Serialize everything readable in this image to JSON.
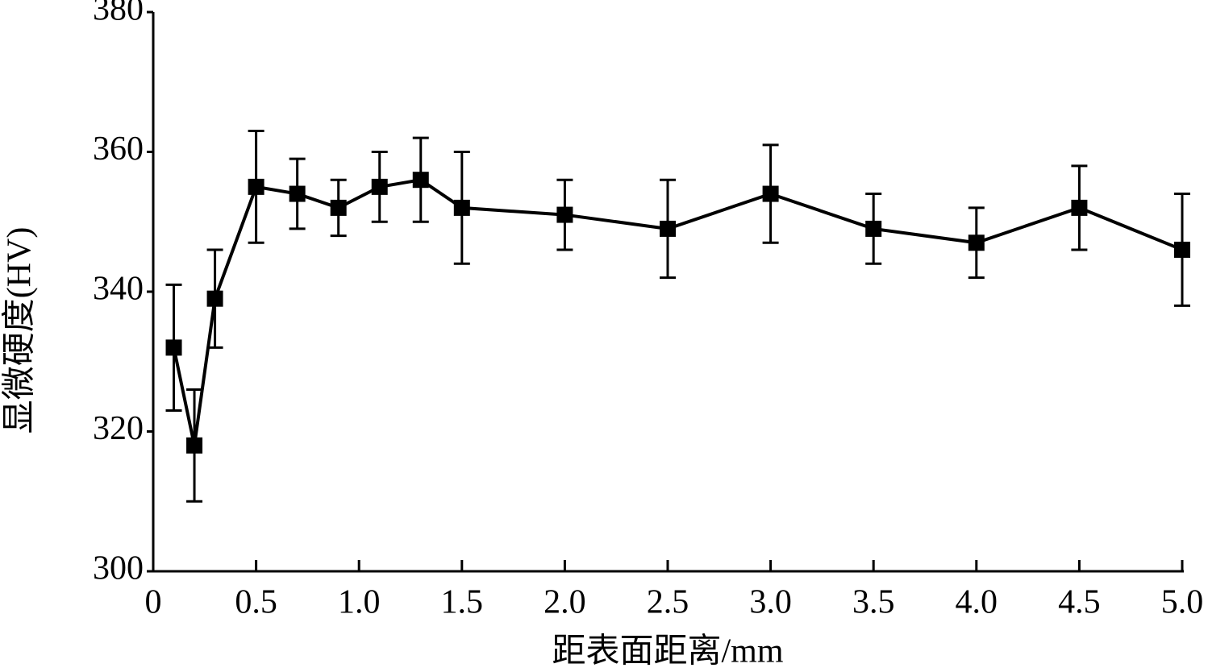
{
  "chart_data": {
    "type": "line",
    "x_label": "距表面距离/mm",
    "y_label": "显微硬度(HV)",
    "x": [
      0.1,
      0.2,
      0.3,
      0.5,
      0.7,
      0.9,
      1.1,
      1.3,
      1.5,
      2.0,
      2.5,
      3.0,
      3.5,
      4.0,
      4.5,
      5.0
    ],
    "values": [
      332,
      318,
      339,
      355,
      354,
      352,
      355,
      356,
      352,
      351,
      349,
      354,
      349,
      347,
      352,
      346
    ],
    "errors": [
      9,
      8,
      7,
      8,
      5,
      4,
      5,
      6,
      8,
      5,
      7,
      7,
      5,
      5,
      6,
      8
    ],
    "color": "#000000",
    "xlim": [
      0,
      5
    ],
    "xticks": [
      0,
      0.5,
      {
        "value": 1,
        "label": "1.0"
      },
      1.5,
      {
        "value": 2,
        "label": "2.0"
      },
      2.5,
      {
        "value": 3,
        "label": "3.0"
      },
      3.5,
      {
        "value": 4,
        "label": "4.0"
      },
      4.5,
      {
        "value": 5,
        "label": "5.0"
      }
    ],
    "ylim": [
      300,
      380
    ],
    "yticks": [
      300,
      320,
      340,
      360,
      380
    ]
  }
}
